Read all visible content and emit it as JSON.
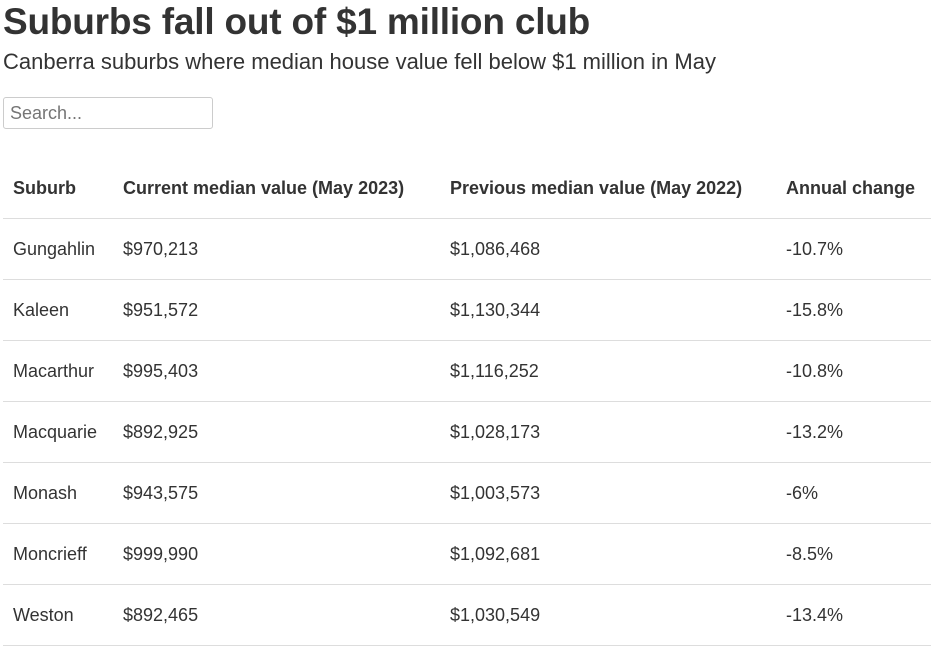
{
  "page": {
    "title": "Suburbs fall out of $1 million club",
    "subtitle": "Canberra suburbs where median house value fell below $1 million in May"
  },
  "search": {
    "placeholder": "Search...",
    "value": ""
  },
  "table": {
    "headers": [
      "Suburb",
      "Current median value (May 2023)",
      "Previous median value (May 2022)",
      "Annual change"
    ],
    "rows": [
      {
        "suburb": "Gungahlin",
        "current": "$970,213",
        "previous": "$1,086,468",
        "change": "-10.7%"
      },
      {
        "suburb": "Kaleen",
        "current": "$951,572",
        "previous": "$1,130,344",
        "change": "-15.8%"
      },
      {
        "suburb": "Macarthur",
        "current": "$995,403",
        "previous": "$1,116,252",
        "change": "-10.8%"
      },
      {
        "suburb": "Macquarie",
        "current": "$892,925",
        "previous": "$1,028,173",
        "change": "-13.2%"
      },
      {
        "suburb": "Monash",
        "current": "$943,575",
        "previous": "$1,003,573",
        "change": "-6%"
      },
      {
        "suburb": "Moncrieff",
        "current": "$999,990",
        "previous": "$1,092,681",
        "change": "-8.5%"
      },
      {
        "suburb": "Weston",
        "current": "$892,465",
        "previous": "$1,030,549",
        "change": "-13.4%"
      }
    ]
  },
  "colors": {
    "text": "#333333",
    "border": "#dddddd",
    "input_border": "#cccccc",
    "background": "#ffffff"
  }
}
